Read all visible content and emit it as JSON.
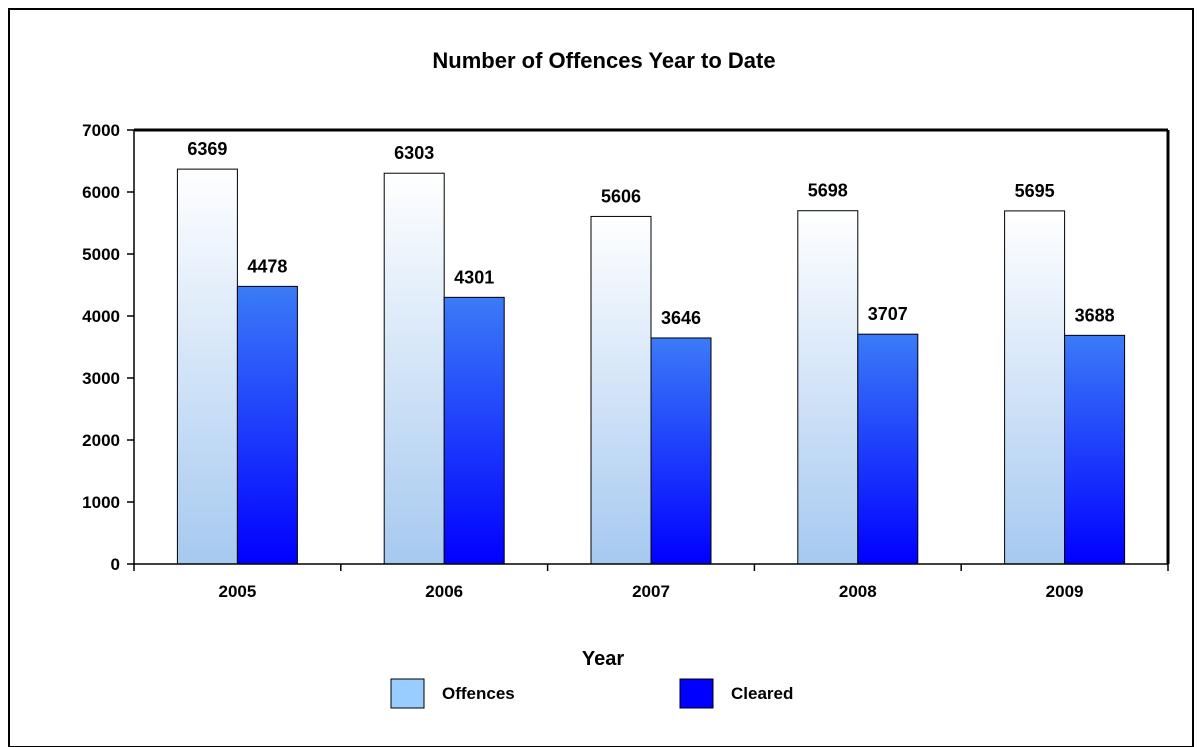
{
  "chart_data": {
    "type": "bar",
    "title": "Number of Offences Year to Date",
    "xlabel": "Year",
    "ylabel": "",
    "categories": [
      "2005",
      "2006",
      "2007",
      "2008",
      "2009"
    ],
    "series": [
      {
        "name": "Offences",
        "values": [
          6369,
          6303,
          5606,
          5698,
          5695
        ]
      },
      {
        "name": "Cleared",
        "values": [
          4478,
          4301,
          3646,
          3707,
          3688
        ]
      }
    ],
    "ylim": [
      0,
      7000
    ],
    "yticks": [
      0,
      1000,
      2000,
      3000,
      4000,
      5000,
      6000,
      7000
    ],
    "grid": false,
    "legend_position": "bottom",
    "colors": {
      "offences_top": "#ffffff",
      "offences_bottom": "#a6c9f0",
      "cleared_top": "#3b7bf7",
      "cleared_bottom": "#0000ff",
      "legend_offences": "#99ccff",
      "legend_cleared": "#0000ff"
    }
  }
}
